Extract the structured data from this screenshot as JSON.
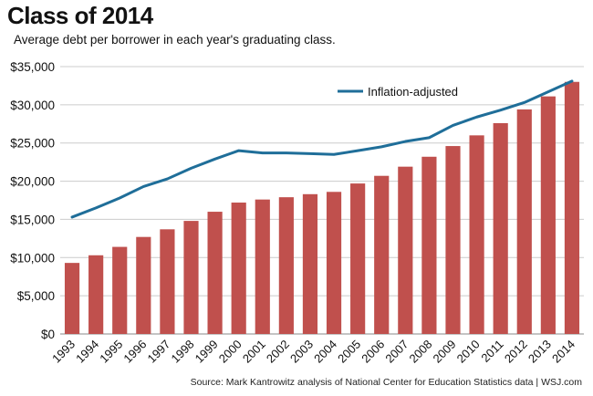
{
  "title": "Class of 2014",
  "subtitle": "Average debt per borrower in each year's graduating class.",
  "source": "Source: Mark Kantrowitz analysis of National Center for Education Statistics data  |  WSJ.com",
  "colors": {
    "bar": "#c0504d",
    "line": "#1f6e99",
    "grid": "#cccccc"
  },
  "chart_data": {
    "type": "bar",
    "categories": [
      "1993",
      "1994",
      "1995",
      "1996",
      "1997",
      "1998",
      "1999",
      "2000",
      "2001",
      "2002",
      "2003",
      "2004",
      "2005",
      "2006",
      "2007",
      "2008",
      "2009",
      "2010",
      "2011",
      "2012",
      "2013",
      "2014"
    ],
    "series": [
      {
        "type": "bar",
        "values": [
          9300,
          10300,
          11400,
          12700,
          13700,
          14800,
          16000,
          17200,
          17600,
          17900,
          18300,
          18600,
          19700,
          20700,
          21900,
          23200,
          24600,
          26000,
          27600,
          29400,
          31100,
          33000
        ]
      },
      {
        "name": "Inflation-adjusted",
        "type": "line",
        "values": [
          15300,
          16500,
          17800,
          19300,
          20300,
          21700,
          22900,
          24000,
          23700,
          23700,
          23600,
          23500,
          24000,
          24500,
          25200,
          25700,
          27300,
          28400,
          29300,
          30300,
          31700,
          33100
        ]
      }
    ],
    "y_ticks": [
      "$0",
      "$5,000",
      "$10,000",
      "$15,000",
      "$20,000",
      "$25,000",
      "$30,000",
      "$35,000"
    ],
    "ylim": [
      0,
      35000
    ],
    "grid": true,
    "legend": "top-right"
  }
}
